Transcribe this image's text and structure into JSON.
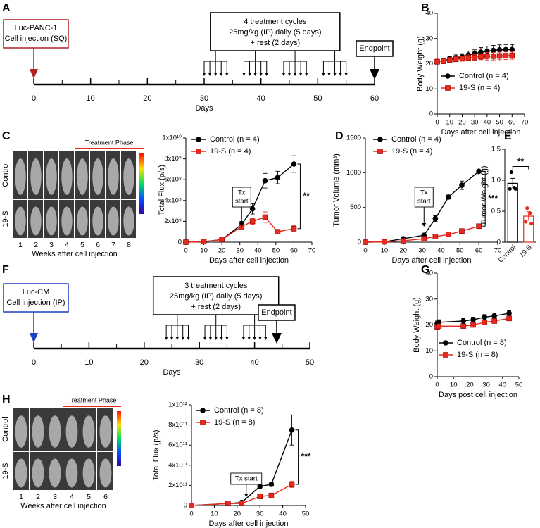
{
  "chart_data": [
    {
      "type": "timeline",
      "panel": "A",
      "xlim": [
        0,
        60
      ],
      "xticks": [
        0,
        10,
        20,
        30,
        40,
        50,
        60
      ],
      "minor_ticks": [
        5,
        15,
        25,
        35,
        45,
        55
      ],
      "xlabel": "Days",
      "color": "#b22222",
      "injection_day": 0,
      "injection_label": [
        "Luc-PANC-1",
        "Cell injection (SQ)"
      ],
      "dose_days": [
        30,
        31,
        32,
        33,
        34,
        37,
        38,
        39,
        40,
        41,
        44,
        45,
        46,
        47,
        48,
        51,
        52,
        53,
        54,
        55
      ],
      "treatment_label": [
        "4 treatment cycles",
        "25mg/kg (IP) daily (5 days)",
        "+ rest (2 days)"
      ],
      "endpoint_day": 60,
      "endpoint_label": "Endpoint"
    },
    {
      "type": "line",
      "panel": "B",
      "ylabel": "Body Weight (g)",
      "xlabel": "Days after cell injection",
      "x": [
        0,
        5,
        10,
        15,
        20,
        25,
        30,
        35,
        40,
        45,
        50,
        55,
        60
      ],
      "xlim": [
        0,
        70
      ],
      "xticks": [
        0,
        10,
        20,
        30,
        40,
        50,
        60,
        70
      ],
      "ylim": [
        0,
        40
      ],
      "yticks": [
        0,
        10,
        20,
        30,
        40
      ],
      "series": [
        {
          "name": "Control (n = 4)",
          "color": "#000000",
          "marker": "circle",
          "values": [
            20.8,
            21.2,
            21.8,
            22.3,
            22.8,
            23.5,
            24,
            24.6,
            25,
            25.3,
            25.5,
            25.6,
            25.6
          ],
          "errors": [
            1,
            1,
            1,
            1.2,
            1.2,
            1.5,
            1.5,
            1.8,
            2,
            2,
            2,
            2,
            2
          ]
        },
        {
          "name": "19-S (n = 4)",
          "color": "#e8291c",
          "marker": "square",
          "values": [
            20.8,
            21,
            21.5,
            21.8,
            22,
            22.3,
            22.5,
            22.8,
            23,
            23,
            23.1,
            23.2,
            23.3
          ],
          "errors": [
            1,
            1,
            1,
            1,
            1,
            1.2,
            1.2,
            1.2,
            1.5,
            1.5,
            1.5,
            1.5,
            1.5
          ]
        }
      ]
    },
    {
      "type": "image",
      "panel": "C",
      "row_labels": [
        "Control",
        "19-S"
      ],
      "row_colors": [
        "#000000",
        "#e8291c"
      ],
      "column_labels": [
        1,
        2,
        3,
        4,
        5,
        6,
        7,
        8
      ],
      "banner": "Treatment Phase",
      "banner_color": "#e8291c",
      "xlabel": "Weeks after cell injection"
    },
    {
      "type": "line",
      "ylabel": "Total Flux (p/s)",
      "xlabel": "Days after cell injection",
      "x": [
        0,
        10,
        20,
        31,
        37,
        44,
        51,
        60
      ],
      "xlim": [
        0,
        70
      ],
      "xticks": [
        0,
        10,
        20,
        30,
        40,
        50,
        60,
        70
      ],
      "ylim": [
        0,
        10000000000.0
      ],
      "yticks": [
        0,
        {
          "value": 2000000000.0,
          "label": "2x10⁹"
        },
        {
          "value": 4000000000.0,
          "label": "4x10⁹"
        },
        {
          "value": 6000000000.0,
          "label": "6x10⁹"
        },
        {
          "value": 8000000000.0,
          "label": "8x10⁹"
        },
        {
          "value": 10000000000.0,
          "label": "1x10¹⁰"
        }
      ],
      "annotation": {
        "text": [
          "Tx",
          "start"
        ],
        "x": 31
      },
      "significance": "**",
      "series": [
        {
          "name": "Control (n = 4)",
          "color": "#000000",
          "marker": "circle",
          "values": [
            0,
            50000000.0,
            250000000.0,
            1700000000.0,
            3200000000.0,
            5900000000.0,
            6200000000.0,
            7500000000.0
          ],
          "errors": [
            0,
            20000000.0,
            100000000.0,
            300000000.0,
            500000000.0,
            700000000.0,
            600000000.0,
            800000000.0
          ]
        },
        {
          "name": "19-S (n = 4)",
          "color": "#e8291c",
          "marker": "square",
          "values": [
            0,
            50000000.0,
            250000000.0,
            1500000000.0,
            2000000000.0,
            2400000000.0,
            1000000000.0,
            1300000000.0
          ],
          "errors": [
            0,
            20000000.0,
            100000000.0,
            300000000.0,
            300000000.0,
            500000000.0,
            200000000.0,
            300000000.0
          ]
        }
      ]
    },
    {
      "type": "line",
      "panel": "D",
      "ylabel": "Tumor Volume (mm³)",
      "xlabel": "Days after cell injection",
      "x": [
        0,
        10,
        20,
        31,
        37,
        44,
        51,
        60
      ],
      "xlim": [
        0,
        70
      ],
      "xticks": [
        0,
        10,
        20,
        30,
        40,
        50,
        60,
        70
      ],
      "ylim": [
        0,
        1500
      ],
      "yticks": [
        0,
        500,
        1000,
        1500
      ],
      "annotation": {
        "text": [
          "Tx",
          "start"
        ],
        "x": 31
      },
      "significance": "***",
      "series": [
        {
          "name": "Control (n = 4)",
          "color": "#000000",
          "marker": "circle",
          "values": [
            0,
            5,
            50,
            100,
            340,
            650,
            820,
            1020
          ],
          "errors": [
            0,
            2,
            10,
            20,
            40,
            30,
            60,
            50
          ]
        },
        {
          "name": "19-S (n = 4)",
          "color": "#e8291c",
          "marker": "square",
          "values": [
            0,
            5,
            20,
            50,
            80,
            110,
            160,
            230
          ],
          "errors": [
            0,
            2,
            5,
            10,
            15,
            15,
            20,
            25
          ]
        }
      ]
    },
    {
      "type": "bar",
      "panel": "E",
      "ylabel": "Tumor Weight (g)",
      "categories": [
        "Control",
        "19-S"
      ],
      "colors": [
        "#000000",
        "#e8291c"
      ],
      "values": [
        0.95,
        0.42
      ],
      "errors": [
        0.08,
        0.07
      ],
      "points": [
        [
          1.13,
          0.88,
          0.86,
          0.86
        ],
        [
          0.55,
          0.47,
          0.33,
          0.3
        ]
      ],
      "ylim": [
        0,
        1.5
      ],
      "yticks": [
        0,
        0.5,
        {
          "value": 1,
          "label": "1.0"
        },
        1.5
      ],
      "significance": "**"
    },
    {
      "type": "timeline",
      "panel": "F",
      "xlim": [
        0,
        50
      ],
      "xticks": [
        0,
        10,
        20,
        30,
        40,
        50
      ],
      "minor_ticks": [
        5,
        15,
        25,
        35,
        45
      ],
      "xlabel": "Days",
      "color": "#1f3fbf",
      "injection_day": 0,
      "injection_label": [
        "Luc-CM",
        "Cell injection (IP)"
      ],
      "dose_days": [
        24,
        25,
        26,
        27,
        28,
        31,
        32,
        33,
        34,
        35,
        38,
        39,
        40,
        41,
        42
      ],
      "treatment_label": [
        "3 treatment cycles",
        "25mg/kg (IP) daily (5 days)",
        "+ rest (2 days)"
      ],
      "endpoint_day": 44,
      "endpoint_label": "Endpoint"
    },
    {
      "type": "line",
      "panel": "G",
      "ylabel": "Body Weight (g)",
      "xlabel": "Days post cell injection",
      "x": [
        0,
        1,
        16,
        22,
        29,
        35,
        44
      ],
      "xlim": [
        0,
        50
      ],
      "xticks": [
        0,
        10,
        20,
        30,
        40,
        50
      ],
      "ylim": [
        0,
        40
      ],
      "yticks": [
        0,
        10,
        20,
        30,
        40
      ],
      "series": [
        {
          "name": "Control (n = 8)",
          "color": "#000000",
          "marker": "circle",
          "values": [
            20.5,
            21,
            21.5,
            22,
            23,
            23.5,
            24.5
          ],
          "errors": [
            1,
            1,
            1,
            1,
            1,
            1,
            1
          ]
        },
        {
          "name": "19-S (n = 8)",
          "color": "#e8291c",
          "marker": "square",
          "values": [
            19,
            19.5,
            19.5,
            20,
            21,
            21.5,
            22.5
          ],
          "errors": [
            0.8,
            0.8,
            0.8,
            0.8,
            0.8,
            0.8,
            0.8
          ]
        }
      ]
    },
    {
      "type": "image",
      "panel": "H",
      "row_labels": [
        "Control",
        "19-S"
      ],
      "row_colors": [
        "#000000",
        "#e8291c"
      ],
      "column_labels": [
        1,
        2,
        3,
        4,
        5,
        6
      ],
      "banner": "Treatment Phase",
      "banner_color": "#e8291c",
      "xlabel": "Weeks after cell injection"
    },
    {
      "type": "line",
      "ylabel": "Total Flux (p/s)",
      "xlabel": "Days after cell injection",
      "x": [
        0,
        16,
        22,
        30,
        35,
        44
      ],
      "xlim": [
        0,
        50
      ],
      "xticks": [
        0,
        10,
        20,
        30,
        40,
        50
      ],
      "ylim": [
        0,
        1000000000000.0
      ],
      "yticks": [
        0,
        {
          "value": 200000000000.0,
          "label": "2x10¹¹"
        },
        {
          "value": 400000000000.0,
          "label": "4x10¹¹"
        },
        {
          "value": 600000000000.0,
          "label": "6x10¹¹"
        },
        {
          "value": 800000000000.0,
          "label": "8x10¹¹"
        },
        {
          "value": 1000000000000.0,
          "label": "1x10¹²"
        }
      ],
      "annotation": {
        "text": [
          "Tx start"
        ],
        "x": 24
      },
      "significance": "***",
      "series": [
        {
          "name": "Control (n = 8)",
          "color": "#000000",
          "marker": "circle",
          "values": [
            0,
            20000000000.0,
            30000000000.0,
            190000000000.0,
            210000000000.0,
            750000000000.0
          ],
          "errors": [
            0,
            5000000000.0,
            10000000000.0,
            20000000000.0,
            20000000000.0,
            150000000000.0
          ]
        },
        {
          "name": "19-S (n = 8)",
          "color": "#e8291c",
          "marker": "square",
          "values": [
            0,
            20000000000.0,
            20000000000.0,
            90000000000.0,
            100000000000.0,
            210000000000.0
          ],
          "errors": [
            0,
            5000000000.0,
            5000000000.0,
            10000000000.0,
            15000000000.0,
            30000000000.0
          ]
        }
      ]
    }
  ]
}
